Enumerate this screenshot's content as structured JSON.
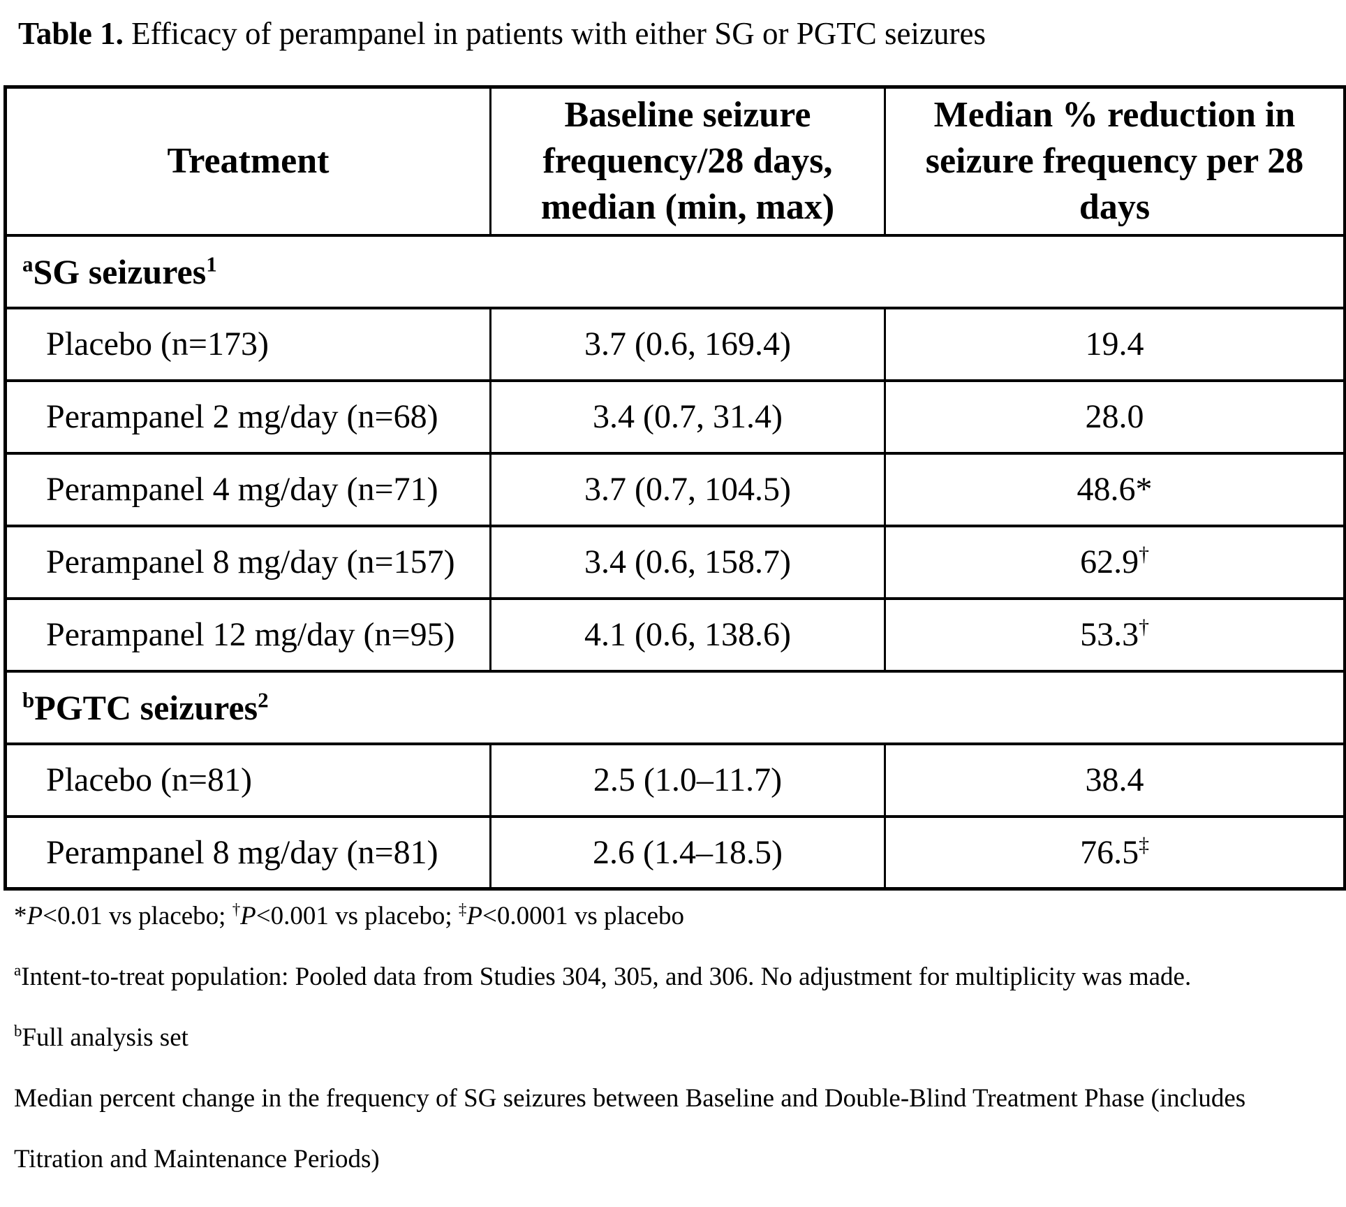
{
  "title": {
    "label": "Table 1.",
    "text": " Efficacy of perampanel in patients with either SG or PGTC seizures"
  },
  "table": {
    "columns": [
      {
        "lines": [
          "Treatment"
        ]
      },
      {
        "lines": [
          "Baseline seizure",
          "frequency/28 days,",
          "median (min, max)"
        ]
      },
      {
        "lines": [
          "Median % reduction in",
          "seizure frequency per 28",
          "days"
        ]
      }
    ],
    "sections": [
      {
        "marker": "a",
        "label": "SG seizures",
        "ref": "1",
        "rows": [
          {
            "treatment": "Placebo (n=173)",
            "baseline": "3.7 (0.6, 169.4)",
            "reduction": "19.4",
            "reduction_sup": ""
          },
          {
            "treatment": "Perampanel 2 mg/day (n=68)",
            "baseline": "3.4 (0.7, 31.4)",
            "reduction": "28.0",
            "reduction_sup": ""
          },
          {
            "treatment": "Perampanel 4 mg/day (n=71)",
            "baseline": "3.7 (0.7, 104.5)",
            "reduction": "48.6*",
            "reduction_sup": ""
          },
          {
            "treatment": "Perampanel 8 mg/day (n=157)",
            "baseline": "3.4 (0.6, 158.7)",
            "reduction": "62.9",
            "reduction_sup": "†"
          },
          {
            "treatment": "Perampanel 12 mg/day (n=95)",
            "baseline": "4.1 (0.6, 138.6)",
            "reduction": "53.3",
            "reduction_sup": "†"
          }
        ]
      },
      {
        "marker": "b",
        "label": "PGTC seizures",
        "ref": "2",
        "rows": [
          {
            "treatment": "Placebo (n=81)",
            "baseline": "2.5 (1.0–11.7)",
            "reduction": "38.4",
            "reduction_sup": ""
          },
          {
            "treatment": "Perampanel 8 mg/day (n=81)",
            "baseline": "2.6 (1.4–18.5)",
            "reduction": "76.5",
            "reduction_sup": "‡"
          }
        ]
      }
    ]
  },
  "footnotes": {
    "significance": {
      "star": "*",
      "p1": "P",
      "t1": "<0.01 vs placebo; ",
      "dagger": "†",
      "p2": "P",
      "t2": "<0.001 vs placebo; ",
      "ddagger": "‡",
      "p3": "P",
      "t3": "<0.0001 vs placebo"
    },
    "a": {
      "sup": "a",
      "text": "Intent-to-treat population: Pooled data from Studies 304, 305, and 306. No adjustment for multiplicity was made."
    },
    "b": {
      "sup": "b",
      "text": "Full analysis set"
    },
    "c_line1": "Median percent change in the frequency of SG seizures between Baseline and Double-Blind Treatment Phase (includes",
    "c_line2": "Titration and Maintenance Periods)"
  }
}
